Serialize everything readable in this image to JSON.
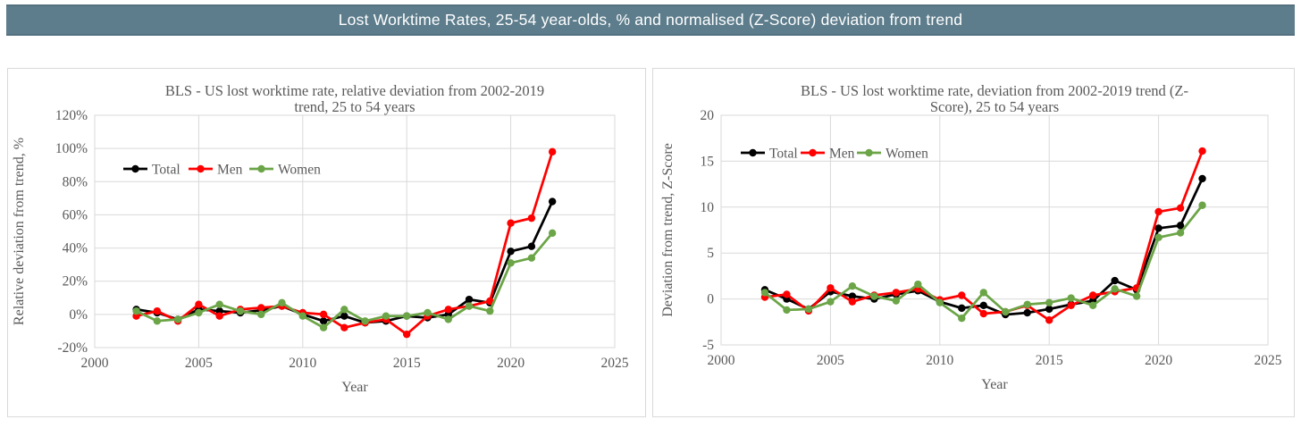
{
  "header": {
    "title": "Lost Worktime Rates, 25-54 year-olds, % and normalised (Z-Score) deviation from trend"
  },
  "colors": {
    "header_bg": "#5d7d8c",
    "header_text": "#ffffff",
    "chart_text": "#595959",
    "gridline": "#d9d9d9",
    "panel_border": "#d9d9d9",
    "total": "#000000",
    "men": "#ff0000",
    "women": "#6ba547"
  },
  "chart_data": [
    {
      "type": "line",
      "title": "BLS - US lost worktime rate, relative deviation from 2002-2019 trend, 25 to 54 years",
      "title_lines": [
        "BLS - US lost worktime rate, relative deviation from 2002-2019",
        "trend, 25 to 54 years"
      ],
      "xlabel": "Year",
      "ylabel": "Relative deviation from trend, %",
      "xlim": [
        2000,
        2025
      ],
      "ylim": [
        -20,
        120
      ],
      "grid": true,
      "legend_position": "inside-upper-left",
      "x_ticks": [
        2000,
        2005,
        2010,
        2015,
        2020,
        2025
      ],
      "y_ticks": [
        {
          "value": 120,
          "label": "120%"
        },
        {
          "value": 100,
          "label": "100%"
        },
        {
          "value": 80,
          "label": "80%"
        },
        {
          "value": 60,
          "label": "60%"
        },
        {
          "value": 40,
          "label": "40%"
        },
        {
          "value": 20,
          "label": "20%"
        },
        {
          "value": 0,
          "label": "0%"
        },
        {
          "value": -20,
          "label": "-20%"
        }
      ],
      "x": [
        2002,
        2003,
        2004,
        2005,
        2006,
        2007,
        2008,
        2009,
        2010,
        2011,
        2012,
        2013,
        2014,
        2015,
        2016,
        2017,
        2018,
        2019,
        2020,
        2021,
        2022
      ],
      "series": [
        {
          "name": "Total",
          "color_key": "total",
          "values": [
            3,
            1,
            -3,
            3,
            2,
            1,
            2.5,
            5,
            0,
            -4,
            -1,
            -5,
            -4,
            -1,
            -2,
            0,
            9,
            7,
            38,
            41,
            68
          ]
        },
        {
          "name": "Men",
          "color_key": "men",
          "values": [
            -1,
            2,
            -4,
            6,
            -1,
            3,
            4,
            5,
            1,
            0,
            -8,
            -5,
            -3,
            -12,
            -1,
            3,
            5,
            8,
            55,
            58,
            98
          ]
        },
        {
          "name": "Women",
          "color_key": "women",
          "values": [
            2,
            -4,
            -3,
            1,
            6,
            2,
            0,
            7,
            -1,
            -8,
            3,
            -4,
            -1,
            -1,
            1,
            -3,
            5,
            2,
            31,
            34,
            49
          ]
        }
      ]
    },
    {
      "type": "line",
      "title": "BLS - US lost worktime rate, deviation from 2002-2019 trend (Z-Score), 25 to 54 years",
      "title_lines": [
        "BLS - US lost worktime rate, deviation from 2002-2019 trend (Z-",
        "Score), 25 to 54 years"
      ],
      "xlabel": "Year",
      "ylabel": "Deviation from trend, Z-Score",
      "xlim": [
        2000,
        2025
      ],
      "ylim": [
        -5,
        20
      ],
      "grid": true,
      "legend_position": "inside-upper-left",
      "x_ticks": [
        2000,
        2005,
        2010,
        2015,
        2020,
        2025
      ],
      "y_ticks": [
        {
          "value": 20,
          "label": "20"
        },
        {
          "value": 15,
          "label": "15"
        },
        {
          "value": 10,
          "label": "10"
        },
        {
          "value": 5,
          "label": "5"
        },
        {
          "value": 0,
          "label": "0"
        },
        {
          "value": -5,
          "label": "-5"
        }
      ],
      "x": [
        2002,
        2003,
        2004,
        2005,
        2006,
        2007,
        2008,
        2009,
        2010,
        2011,
        2012,
        2013,
        2014,
        2015,
        2016,
        2017,
        2018,
        2019,
        2020,
        2021,
        2022
      ],
      "series": [
        {
          "name": "Total",
          "color_key": "total",
          "values": [
            1.0,
            0.0,
            -1.1,
            0.8,
            0.3,
            0.0,
            0.5,
            0.9,
            -0.3,
            -1.0,
            -0.7,
            -1.7,
            -1.5,
            -1.1,
            -0.6,
            -0.2,
            2.0,
            1.0,
            7.7,
            8.0,
            13.1
          ]
        },
        {
          "name": "Men",
          "color_key": "men",
          "values": [
            0.2,
            0.5,
            -1.3,
            1.2,
            -0.3,
            0.4,
            0.7,
            1.1,
            -0.1,
            0.4,
            -1.6,
            -1.4,
            -0.7,
            -2.3,
            -0.7,
            0.4,
            0.8,
            1.2,
            9.5,
            9.9,
            16.1
          ]
        },
        {
          "name": "Women",
          "color_key": "women",
          "values": [
            0.7,
            -1.2,
            -1.1,
            -0.3,
            1.4,
            0.3,
            -0.2,
            1.6,
            -0.4,
            -2.1,
            0.7,
            -1.4,
            -0.6,
            -0.4,
            0.1,
            -0.7,
            1.1,
            0.3,
            6.7,
            7.2,
            10.2
          ]
        }
      ]
    }
  ]
}
